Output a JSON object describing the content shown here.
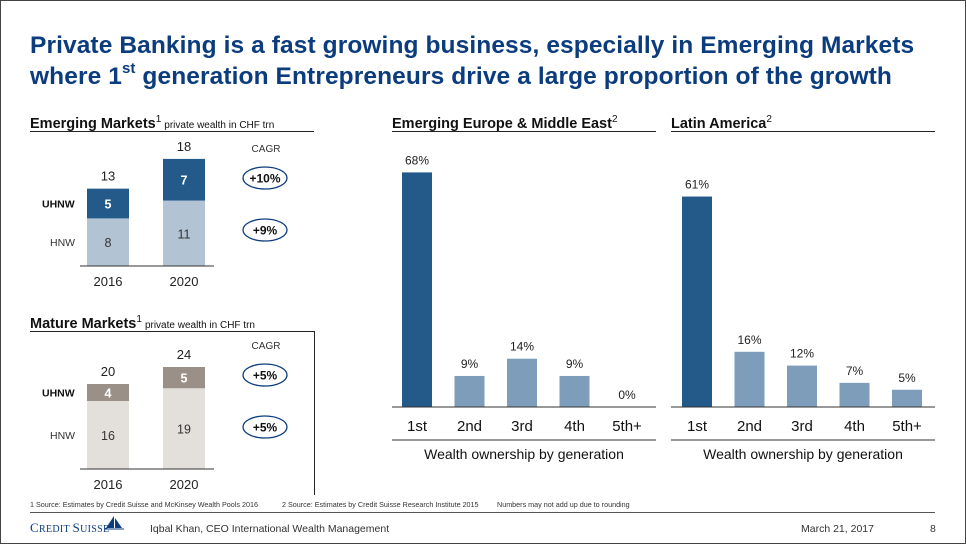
{
  "title": {
    "line1": "Private Banking is a fast growing business, especially in Emerging Markets",
    "line2_pre": "where 1",
    "line2_sup": "st",
    "line2_post": " generation Entrepreneurs drive a large proportion of the growth"
  },
  "colors": {
    "title_blue": "#0b3c7d",
    "dark_blue": "#245a8a",
    "light_blue": "#b2c3d4",
    "mid_blue": "#7e9dbb",
    "taupe": "#9b9088",
    "light_taupe": "#e3dfdb"
  },
  "emerging": {
    "heading": "Emerging Markets",
    "sup": "1",
    "subheading": "private wealth in CHF trn"
  },
  "mature": {
    "heading": "Mature Markets",
    "sup": "1",
    "subheading": "private wealth in CHF trn"
  },
  "europe": {
    "heading": "Emerging Europe & Middle East",
    "sup": "2"
  },
  "latam": {
    "heading": "Latin America",
    "sup": "2"
  },
  "chart_data": [
    {
      "type": "bar",
      "stacked": true,
      "categories": [
        "2016",
        "2020"
      ],
      "series": [
        {
          "name": "HNW",
          "values": [
            8,
            11
          ]
        },
        {
          "name": "UHNW",
          "values": [
            5,
            7
          ]
        }
      ],
      "totals": [
        13,
        18
      ],
      "cagr_label": "CAGR",
      "cagr": {
        "UHNW": "+10%",
        "HNW": "+9%"
      }
    },
    {
      "type": "bar",
      "stacked": true,
      "categories": [
        "2016",
        "2020"
      ],
      "series": [
        {
          "name": "HNW",
          "values": [
            16,
            19
          ]
        },
        {
          "name": "UHNW",
          "values": [
            4,
            5
          ]
        }
      ],
      "totals": [
        20,
        24
      ],
      "cagr_label": "CAGR",
      "cagr": {
        "UHNW": "+5%",
        "HNW": "+5%"
      }
    },
    {
      "type": "bar",
      "categories": [
        "1st",
        "2nd",
        "3rd",
        "4th",
        "5th+"
      ],
      "values": [
        68,
        9,
        14,
        9,
        0
      ],
      "value_labels": [
        "68%",
        "9%",
        "14%",
        "9%",
        "0%"
      ],
      "xlabel": "Wealth ownership by generation"
    },
    {
      "type": "bar",
      "categories": [
        "1st",
        "2nd",
        "3rd",
        "4th",
        "5th+"
      ],
      "values": [
        61,
        16,
        12,
        7,
        5
      ],
      "value_labels": [
        "61%",
        "16%",
        "12%",
        "7%",
        "5%"
      ],
      "xlabel": "Wealth ownership by generation"
    }
  ],
  "footnotes": {
    "f1": "1 Source: Estimates by Credit Suisse and McKinsey Wealth Pools 2016",
    "f2": "2 Source: Estimates by Credit Suisse Research Institute 2015",
    "f3": "Numbers may not add up due to rounding"
  },
  "footer": {
    "logo_c": "C",
    "logo_redit": "REDIT ",
    "logo_s": "S",
    "logo_uisse": "UISSE",
    "presenter": "Iqbal Khan, CEO International Wealth Management",
    "date": "March 21, 2017",
    "page": "8"
  }
}
